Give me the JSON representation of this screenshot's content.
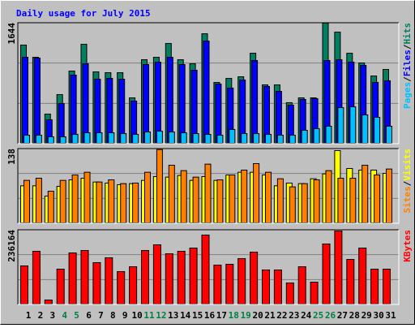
{
  "title": "Daily usage for July 2015",
  "legend_separator": "/",
  "categories": [
    "1",
    "2",
    "3",
    "4",
    "5",
    "6",
    "7",
    "8",
    "9",
    "10",
    "11",
    "12",
    "13",
    "14",
    "15",
    "16",
    "17",
    "18",
    "19",
    "20",
    "21",
    "22",
    "23",
    "24",
    "25",
    "26",
    "27",
    "28",
    "29",
    "30",
    "31"
  ],
  "category_colors": [
    "#000000",
    "#000000",
    "#000000",
    "#008040",
    "#008040",
    "#000000",
    "#000000",
    "#000000",
    "#000000",
    "#000000",
    "#008040",
    "#008040",
    "#000000",
    "#000000",
    "#000000",
    "#000000",
    "#000000",
    "#008040",
    "#008040",
    "#000000",
    "#000000",
    "#000000",
    "#000000",
    "#000000",
    "#008040",
    "#008040",
    "#000000",
    "#000000",
    "#000000",
    "#000000",
    "#000000"
  ],
  "chart_data": [
    {
      "type": "bar",
      "ylim": [
        0,
        1644
      ],
      "yticks": [
        1644
      ],
      "series": [
        {
          "name": "Hits",
          "color": "#008060",
          "values": [
            1346,
            1180,
            408,
            673,
            993,
            1357,
            982,
            971,
            971,
            629,
            1147,
            1180,
            1368,
            1147,
            1092,
            1500,
            838,
            893,
            915,
            1235,
            805,
            805,
            563,
            629,
            629,
            1644,
            1522,
            1235,
            1103,
            926,
            1015
          ]
        },
        {
          "name": "Files",
          "color": "#0000ff",
          "values": [
            1180,
            1169,
            331,
            552,
            938,
            1092,
            882,
            893,
            882,
            585,
            1081,
            1114,
            1180,
            1081,
            1004,
            1401,
            816,
            761,
            871,
            1136,
            783,
            717,
            530,
            607,
            618,
            1136,
            1147,
            1114,
            1070,
            838,
            860
          ]
        },
        {
          "name": "Pages",
          "color": "#00c0ff",
          "values": [
            121,
            121,
            99,
            99,
            132,
            154,
            154,
            154,
            143,
            132,
            165,
            176,
            165,
            154,
            143,
            132,
            121,
            199,
            143,
            143,
            132,
            121,
            121,
            188,
            210,
            243,
            496,
            507,
            397,
            364,
            243
          ]
        }
      ]
    },
    {
      "type": "bar",
      "ylim": [
        0,
        138
      ],
      "yticks": [
        138
      ],
      "series": [
        {
          "name": "Visits",
          "color": "#ffff00",
          "values": [
            70,
            70,
            51,
            69,
            81,
            84,
            77,
            75,
            72,
            74,
            80,
            87,
            86,
            89,
            80,
            87,
            80,
            90,
            95,
            95,
            90,
            70,
            75,
            74,
            83,
            92,
            135,
            102,
            99,
            99,
            93
          ]
        },
        {
          "name": "Sites",
          "color": "#ff8000",
          "values": [
            80,
            84,
            60,
            80,
            90,
            95,
            77,
            81,
            74,
            75,
            95,
            137,
            108,
            98,
            86,
            110,
            81,
            90,
            99,
            111,
            95,
            83,
            68,
            74,
            81,
            98,
            84,
            84,
            108,
            90,
            101
          ]
        }
      ]
    },
    {
      "type": "bar",
      "ylim": [
        0,
        236164
      ],
      "yticks": [
        236164
      ],
      "series": [
        {
          "name": "KBytes",
          "color": "#ff0000",
          "values": [
            123216,
            169422,
            15402,
            112948,
            164288,
            171989,
            133484,
            148886,
            105247,
            120649,
            171989,
            189958,
            161721,
            169422,
            179690,
            220762,
            125783,
            128350,
            146319,
            166855,
            110381,
            110381,
            69309,
            120649,
            71876,
            192525,
            233597,
            143752,
            179690,
            112948,
            112948
          ]
        }
      ]
    }
  ]
}
